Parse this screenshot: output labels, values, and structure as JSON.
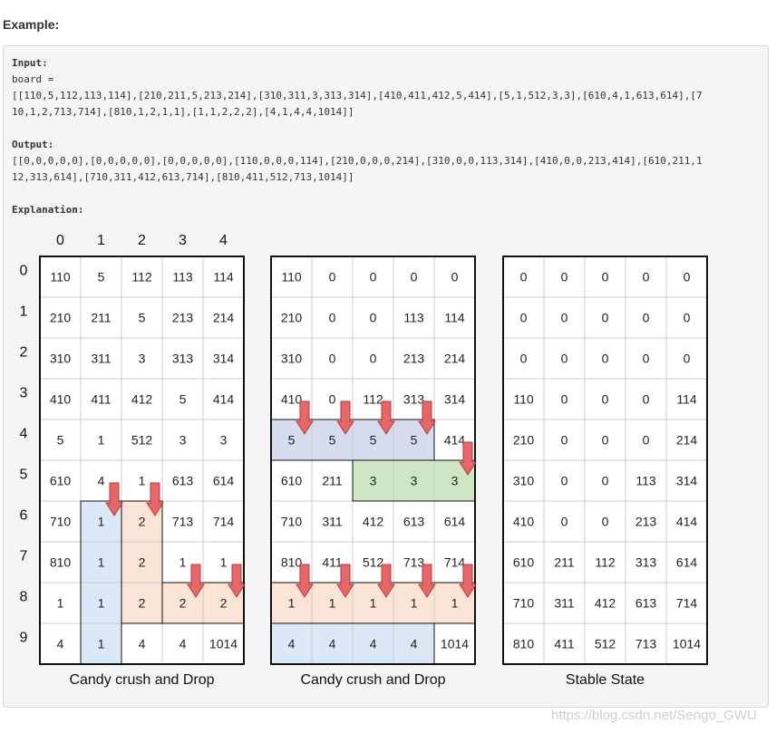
{
  "heading": "Example:",
  "input_label": "Input:",
  "board_line": "board =",
  "input_lines": [
    "[[110,5,112,113,114],[210,211,5,213,214],[310,311,3,313,314],[410,411,412,5,414],[5,1,512,3,3],[610,4,1,613,614],[7",
    "10,1,2,713,714],[810,1,2,1,1],[1,1,2,2,2],[4,1,4,4,1014]]"
  ],
  "output_label": "Output:",
  "output_lines": [
    "[[0,0,0,0,0],[0,0,0,0,0],[0,0,0,0,0],[110,0,0,0,114],[210,0,0,0,214],[310,0,0,113,314],[410,0,0,213,414],[610,211,1",
    "12,313,614],[710,311,412,613,714],[810,411,512,713,1014]]"
  ],
  "explanation_label": "Explanation:",
  "col_indices": [
    "0",
    "1",
    "2",
    "3",
    "4"
  ],
  "row_indices": [
    "0",
    "1",
    "2",
    "3",
    "4",
    "5",
    "6",
    "7",
    "8",
    "9"
  ],
  "colors": {
    "blue": "#dbe8f6",
    "orange": "#fbe3d6",
    "lavender": "#d6dcee",
    "green": "#cfe6c4",
    "arrow_fill": "#e6676a",
    "arrow_stroke": "#b63a3c",
    "border": "#111111",
    "grid": "#cccccc"
  },
  "grids": [
    {
      "caption": "Candy crush and Drop",
      "values": [
        [
          "110",
          "5",
          "112",
          "113",
          "114"
        ],
        [
          "210",
          "211",
          "5",
          "213",
          "214"
        ],
        [
          "310",
          "311",
          "3",
          "313",
          "314"
        ],
        [
          "410",
          "411",
          "412",
          "5",
          "414"
        ],
        [
          "5",
          "1",
          "512",
          "3",
          "3"
        ],
        [
          "610",
          "4",
          "1",
          "613",
          "614"
        ],
        [
          "710",
          "1",
          "2",
          "713",
          "714"
        ],
        [
          "810",
          "1",
          "2",
          "1",
          "1"
        ],
        [
          "1",
          "1",
          "2",
          "2",
          "2"
        ],
        [
          "4",
          "1",
          "4",
          "4",
          "1014"
        ]
      ],
      "regions": [
        {
          "color": "blue",
          "r0": 6,
          "c0": 1,
          "r1": 9,
          "c1": 1
        },
        {
          "color": "orange",
          "r0": 6,
          "c0": 2,
          "r1": 8,
          "c1": 2
        },
        {
          "color": "orange",
          "r0": 8,
          "c0": 3,
          "r1": 8,
          "c1": 4
        }
      ],
      "arrows": [
        [
          5,
          1
        ],
        [
          5,
          2
        ],
        [
          7,
          3
        ],
        [
          7,
          4
        ]
      ]
    },
    {
      "caption": "Candy crush and Drop",
      "values": [
        [
          "110",
          "0",
          "0",
          "0",
          "0"
        ],
        [
          "210",
          "0",
          "0",
          "113",
          "114"
        ],
        [
          "310",
          "0",
          "0",
          "213",
          "214"
        ],
        [
          "410",
          "0",
          "112",
          "313",
          "314"
        ],
        [
          "5",
          "5",
          "5",
          "5",
          "414"
        ],
        [
          "610",
          "211",
          "3",
          "3",
          "3"
        ],
        [
          "710",
          "311",
          "412",
          "613",
          "614"
        ],
        [
          "810",
          "411",
          "512",
          "713",
          "714"
        ],
        [
          "1",
          "1",
          "1",
          "1",
          "1"
        ],
        [
          "4",
          "4",
          "4",
          "4",
          "1014"
        ]
      ],
      "regions": [
        {
          "color": "lavender",
          "r0": 4,
          "c0": 0,
          "r1": 4,
          "c1": 3
        },
        {
          "color": "green",
          "r0": 5,
          "c0": 2,
          "r1": 5,
          "c1": 4
        },
        {
          "color": "orange",
          "r0": 8,
          "c0": 0,
          "r1": 8,
          "c1": 4
        },
        {
          "color": "blue",
          "r0": 9,
          "c0": 0,
          "r1": 9,
          "c1": 3
        }
      ],
      "arrows": [
        [
          3,
          0
        ],
        [
          3,
          1
        ],
        [
          3,
          2
        ],
        [
          3,
          3
        ],
        [
          4,
          4
        ],
        [
          7,
          0
        ],
        [
          7,
          1
        ],
        [
          7,
          2
        ],
        [
          7,
          3
        ],
        [
          7,
          4
        ]
      ]
    },
    {
      "caption": "Stable State",
      "values": [
        [
          "0",
          "0",
          "0",
          "0",
          "0"
        ],
        [
          "0",
          "0",
          "0",
          "0",
          "0"
        ],
        [
          "0",
          "0",
          "0",
          "0",
          "0"
        ],
        [
          "110",
          "0",
          "0",
          "0",
          "114"
        ],
        [
          "210",
          "0",
          "0",
          "0",
          "214"
        ],
        [
          "310",
          "0",
          "0",
          "113",
          "314"
        ],
        [
          "410",
          "0",
          "0",
          "213",
          "414"
        ],
        [
          "610",
          "211",
          "112",
          "313",
          "614"
        ],
        [
          "710",
          "311",
          "412",
          "613",
          "714"
        ],
        [
          "810",
          "411",
          "512",
          "713",
          "1014"
        ]
      ],
      "regions": [],
      "arrows": []
    }
  ],
  "watermark": "https://blog.csdn.net/Sengo_GWU"
}
